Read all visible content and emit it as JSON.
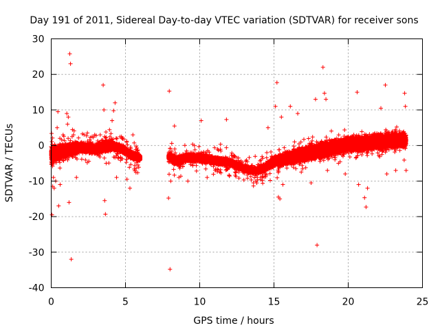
{
  "chart_data": {
    "type": "scatter",
    "title": "Day 191 of 2011, Sidereal Day-to-day VTEC variation (SDTVAR) for receiver sons",
    "xlabel": "GPS time / hours",
    "ylabel": "SDTVAR / TECUs",
    "xlim": [
      0,
      25
    ],
    "ylim": [
      -40,
      30
    ],
    "xticks": [
      "0",
      "5",
      "10",
      "15",
      "20",
      "25"
    ],
    "yticks": [
      "30",
      "20",
      "10",
      "0",
      "-10",
      "-20",
      "-30",
      "-40"
    ],
    "grid": true,
    "marker": "plus",
    "color": "#ff0000",
    "series": [
      {
        "name": "SDTVAR",
        "band": [
          [
            0.0,
            -2.5,
            3.0
          ],
          [
            0.5,
            -2.0,
            2.5
          ],
          [
            1.0,
            -1.5,
            2.2
          ],
          [
            1.5,
            -1.0,
            2.0
          ],
          [
            2.0,
            -0.5,
            1.5
          ],
          [
            2.5,
            -0.8,
            1.5
          ],
          [
            3.0,
            -1.0,
            1.5
          ],
          [
            3.5,
            -0.3,
            1.8
          ],
          [
            4.0,
            0.0,
            1.5
          ],
          [
            4.5,
            -0.5,
            1.2
          ],
          [
            5.0,
            -1.5,
            1.2
          ],
          [
            5.5,
            -3.0,
            1.2
          ],
          [
            6.0,
            -3.5,
            1.0
          ],
          [
            7.9,
            -3.0,
            1.2
          ],
          [
            8.5,
            -4.5,
            1.5
          ],
          [
            9.0,
            -3.5,
            1.2
          ],
          [
            9.5,
            -3.5,
            1.2
          ],
          [
            10.0,
            -3.5,
            1.2
          ],
          [
            10.5,
            -3.8,
            1.2
          ],
          [
            11.0,
            -4.2,
            1.2
          ],
          [
            11.5,
            -4.5,
            1.2
          ],
          [
            12.0,
            -4.8,
            1.0
          ],
          [
            12.5,
            -5.5,
            1.0
          ],
          [
            13.0,
            -6.5,
            1.0
          ],
          [
            13.5,
            -7.0,
            1.0
          ],
          [
            14.0,
            -7.0,
            1.0
          ],
          [
            14.5,
            -6.0,
            1.2
          ],
          [
            15.0,
            -4.5,
            1.5
          ],
          [
            15.5,
            -4.0,
            1.8
          ],
          [
            16.0,
            -3.5,
            2.0
          ],
          [
            16.5,
            -3.0,
            2.2
          ],
          [
            17.0,
            -2.5,
            2.2
          ],
          [
            17.5,
            -2.0,
            2.5
          ],
          [
            18.0,
            -1.5,
            2.5
          ],
          [
            18.5,
            -1.0,
            2.5
          ],
          [
            19.0,
            -0.5,
            2.5
          ],
          [
            19.5,
            0.0,
            2.5
          ],
          [
            20.0,
            0.5,
            2.5
          ],
          [
            20.5,
            0.5,
            2.5
          ],
          [
            21.0,
            0.5,
            2.5
          ],
          [
            21.5,
            1.0,
            2.5
          ],
          [
            22.0,
            1.0,
            2.5
          ],
          [
            22.5,
            1.0,
            2.5
          ],
          [
            23.0,
            1.5,
            2.5
          ],
          [
            23.5,
            1.5,
            2.5
          ],
          [
            23.9,
            1.5,
            2.5
          ]
        ],
        "outliers": [
          [
            0.05,
            -19.5
          ],
          [
            0.1,
            -11.5
          ],
          [
            0.15,
            -9.0
          ],
          [
            0.2,
            -12.0
          ],
          [
            0.3,
            -10.0
          ],
          [
            0.4,
            5.0
          ],
          [
            0.45,
            9.5
          ],
          [
            0.5,
            -17.0
          ],
          [
            0.6,
            -11.0
          ],
          [
            0.8,
            3.0
          ],
          [
            1.05,
            9.0
          ],
          [
            1.1,
            6.0
          ],
          [
            1.15,
            8.0
          ],
          [
            1.2,
            -16.0
          ],
          [
            1.25,
            25.8
          ],
          [
            1.3,
            23.0
          ],
          [
            1.35,
            -32.0
          ],
          [
            1.5,
            3.0
          ],
          [
            1.7,
            -9.0
          ],
          [
            3.3,
            3.0
          ],
          [
            3.5,
            17.0
          ],
          [
            3.55,
            10.0
          ],
          [
            3.6,
            -15.5
          ],
          [
            3.65,
            -19.3
          ],
          [
            3.7,
            -5.0
          ],
          [
            4.1,
            7.0
          ],
          [
            4.2,
            9.8
          ],
          [
            4.3,
            12.0
          ],
          [
            4.4,
            -9.0
          ],
          [
            5.1,
            -9.5
          ],
          [
            5.3,
            -12.0
          ],
          [
            5.5,
            3.0
          ],
          [
            7.9,
            -14.8
          ],
          [
            7.95,
            15.3
          ],
          [
            8.0,
            -34.8
          ],
          [
            8.05,
            -10.0
          ],
          [
            8.3,
            5.5
          ],
          [
            8.6,
            -9.0
          ],
          [
            9.2,
            -10.0
          ],
          [
            10.1,
            7.0
          ],
          [
            10.5,
            -9.0
          ],
          [
            11.8,
            7.3
          ],
          [
            14.6,
            5.0
          ],
          [
            15.1,
            11.0
          ],
          [
            15.2,
            17.7
          ],
          [
            15.3,
            -14.5
          ],
          [
            15.4,
            -15.0
          ],
          [
            15.5,
            8.0
          ],
          [
            15.6,
            -11.0
          ],
          [
            16.1,
            11.0
          ],
          [
            16.6,
            9.0
          ],
          [
            17.5,
            -10.5
          ],
          [
            17.8,
            13.0
          ],
          [
            17.9,
            -28.0
          ],
          [
            18.3,
            22.0
          ],
          [
            18.4,
            14.7
          ],
          [
            18.5,
            13.0
          ],
          [
            18.6,
            -7.0
          ],
          [
            19.8,
            -8.0
          ],
          [
            20.6,
            15.0
          ],
          [
            20.7,
            -11.0
          ],
          [
            21.1,
            -14.7
          ],
          [
            21.2,
            -17.3
          ],
          [
            21.3,
            -12.0
          ],
          [
            22.2,
            10.5
          ],
          [
            22.5,
            17.0
          ],
          [
            22.6,
            -8.0
          ],
          [
            23.2,
            -7.0
          ],
          [
            23.8,
            14.7
          ],
          [
            23.85,
            11.0
          ],
          [
            23.9,
            -7.0
          ]
        ]
      }
    ]
  }
}
